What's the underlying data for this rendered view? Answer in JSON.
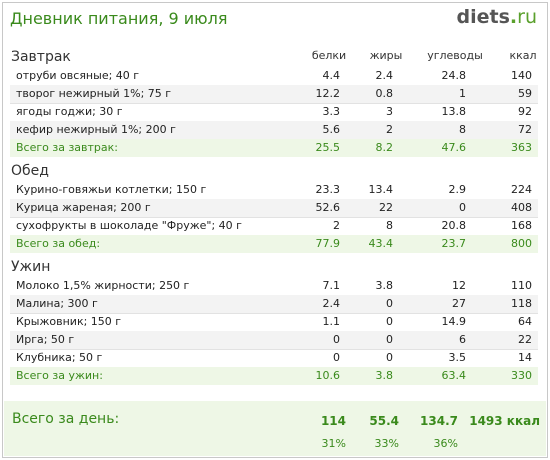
{
  "header": {
    "title": "Дневник питания, 9 июля",
    "logo_main": "diets",
    "logo_dot": ".",
    "logo_tld": "ru"
  },
  "columns": {
    "protein": "белки",
    "fat": "жиры",
    "carbs": "углеводы",
    "kcal": "ккал"
  },
  "sections": [
    {
      "title": "Завтрак",
      "items": [
        {
          "name": "отруби овсяные; 40 г",
          "p": "4.4",
          "f": "2.4",
          "c": "24.8",
          "k": "140"
        },
        {
          "name": "творог нежирный 1%; 75 г",
          "p": "12.2",
          "f": "0.8",
          "c": "1",
          "k": "59"
        },
        {
          "name": "ягоды годжи; 30 г",
          "p": "3.3",
          "f": "3",
          "c": "13.8",
          "k": "92"
        },
        {
          "name": "кефир нежирный 1%; 200 г",
          "p": "5.6",
          "f": "2",
          "c": "8",
          "k": "72"
        }
      ],
      "total": {
        "name": "Всего за завтрак:",
        "p": "25.5",
        "f": "8.2",
        "c": "47.6",
        "k": "363"
      }
    },
    {
      "title": "Обед",
      "items": [
        {
          "name": "Курино-говяжьи котлетки; 150 г",
          "p": "23.3",
          "f": "13.4",
          "c": "2.9",
          "k": "224"
        },
        {
          "name": "Курица жареная; 200 г",
          "p": "52.6",
          "f": "22",
          "c": "0",
          "k": "408"
        },
        {
          "name": "сухофрукты в шоколаде \"Фруже\"; 40 г",
          "p": "2",
          "f": "8",
          "c": "20.8",
          "k": "168"
        }
      ],
      "total": {
        "name": "Всего за обед:",
        "p": "77.9",
        "f": "43.4",
        "c": "23.7",
        "k": "800"
      }
    },
    {
      "title": "Ужин",
      "items": [
        {
          "name": "Молоко 1,5% жирности; 250 г",
          "p": "7.1",
          "f": "3.8",
          "c": "12",
          "k": "110"
        },
        {
          "name": "Малина; 300 г",
          "p": "2.4",
          "f": "0",
          "c": "27",
          "k": "118"
        },
        {
          "name": "Крыжовник; 150 г",
          "p": "1.1",
          "f": "0",
          "c": "14.9",
          "k": "64"
        },
        {
          "name": "Ирга; 50 г",
          "p": "0",
          "f": "0",
          "c": "6",
          "k": "22"
        },
        {
          "name": "Клубника; 50 г",
          "p": "0",
          "f": "0",
          "c": "3.5",
          "k": "14"
        }
      ],
      "total": {
        "name": "Всего за ужин:",
        "p": "10.6",
        "f": "3.8",
        "c": "63.4",
        "k": "330"
      }
    }
  ],
  "day_total": {
    "label": "Всего за день:",
    "protein": "114",
    "fat": "55.4",
    "carbs": "134.7",
    "kcal": "1493 ккал",
    "protein_pct": "31%",
    "fat_pct": "33%",
    "carbs_pct": "36%"
  }
}
